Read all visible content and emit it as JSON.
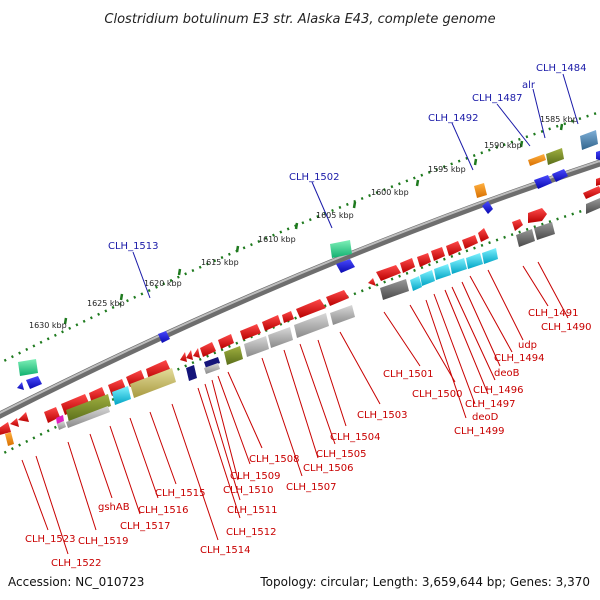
{
  "title": "Clostridium botulinum E3 str. Alaska E43, complete genome",
  "accession": "Accession: NC_010723",
  "summary": "Topology: circular; Length: 3,659,644 bp; Genes: 3,370",
  "kbp_ticks": [
    "1585 kbp",
    "1590 kbp",
    "1595 kbp",
    "1600 kbp",
    "1605 kbp",
    "1610 kbp",
    "1615 kbp",
    "1620 kbp",
    "1625 kbp",
    "1630 kbp"
  ],
  "labels_top": [
    "CLH_1484",
    "alr",
    "CLH_1487",
    "CLH_1492",
    "CLH_1502",
    "CLH_1513"
  ],
  "labels_bottom": [
    "CLH_1490",
    "CLH_1491",
    "udp",
    "CLH_1494",
    "deoB",
    "CLH_1496",
    "CLH_1497",
    "deoD",
    "CLH_1499",
    "CLH_1500",
    "CLH_1501",
    "CLH_1503",
    "CLH_1504",
    "CLH_1505",
    "CLH_1506",
    "CLH_1507",
    "CLH_1508",
    "CLH_1509",
    "CLH_1510",
    "CLH_1511",
    "CLH_1512",
    "CLH_1514",
    "CLH_1515",
    "CLH_1516",
    "gshAB",
    "CLH_1517",
    "CLH_1519",
    "CLH_1522",
    "CLH_1523"
  ],
  "colors": {
    "forward_gene": "#e80000",
    "reverse_gene": "#1a1ae6",
    "backbone": "#7a7a7a",
    "dotted_scale": "#1e7a1e",
    "label_top": "#1a1aa8",
    "label_bottom": "#c80000"
  }
}
